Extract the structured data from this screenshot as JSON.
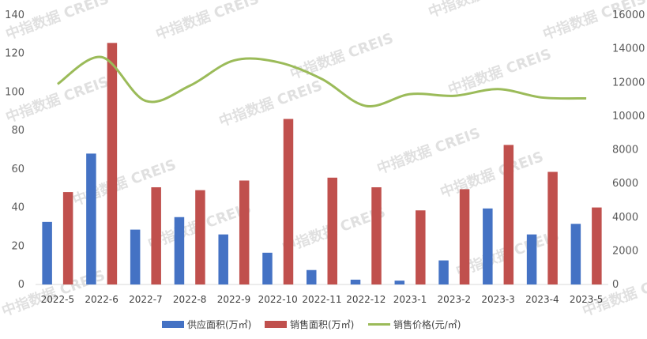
{
  "chart_data": {
    "type": "bar",
    "categories": [
      "2022-5",
      "2022-6",
      "2022-7",
      "2022-8",
      "2022-9",
      "2022-10",
      "2022-11",
      "2022-12",
      "2023-1",
      "2023-2",
      "2023-3",
      "2023-4",
      "2023-5"
    ],
    "series": [
      {
        "name": "供应面积(万㎡)",
        "type": "bar",
        "axis": "left",
        "color": "#4472C4",
        "values": [
          32.5,
          68,
          28.5,
          35,
          26,
          16.5,
          7.5,
          2.5,
          2,
          12.5,
          39.5,
          26,
          31.5
        ]
      },
      {
        "name": "销售面积(万㎡)",
        "type": "bar",
        "axis": "left",
        "color": "#C0504D",
        "values": [
          48,
          125.5,
          50.5,
          49,
          54,
          86,
          55.5,
          50.5,
          38.5,
          49.5,
          72.5,
          58.5,
          40
        ]
      },
      {
        "name": "销售价格(元/㎡)",
        "type": "line",
        "axis": "right",
        "color": "#9BBB59",
        "values": [
          11900,
          13500,
          10900,
          11800,
          13300,
          13200,
          12200,
          10600,
          11300,
          11200,
          11600,
          11100,
          11050
        ]
      }
    ],
    "y_left": {
      "min": 0,
      "max": 140,
      "ticks": [
        0,
        20,
        40,
        60,
        80,
        100,
        120,
        140
      ]
    },
    "y_right": {
      "min": 0,
      "max": 16000,
      "ticks": [
        0,
        2000,
        4000,
        6000,
        8000,
        10000,
        12000,
        14000,
        16000
      ]
    },
    "grid": false,
    "legend_position": "bottom"
  },
  "watermark": "中指数据 CREIS"
}
